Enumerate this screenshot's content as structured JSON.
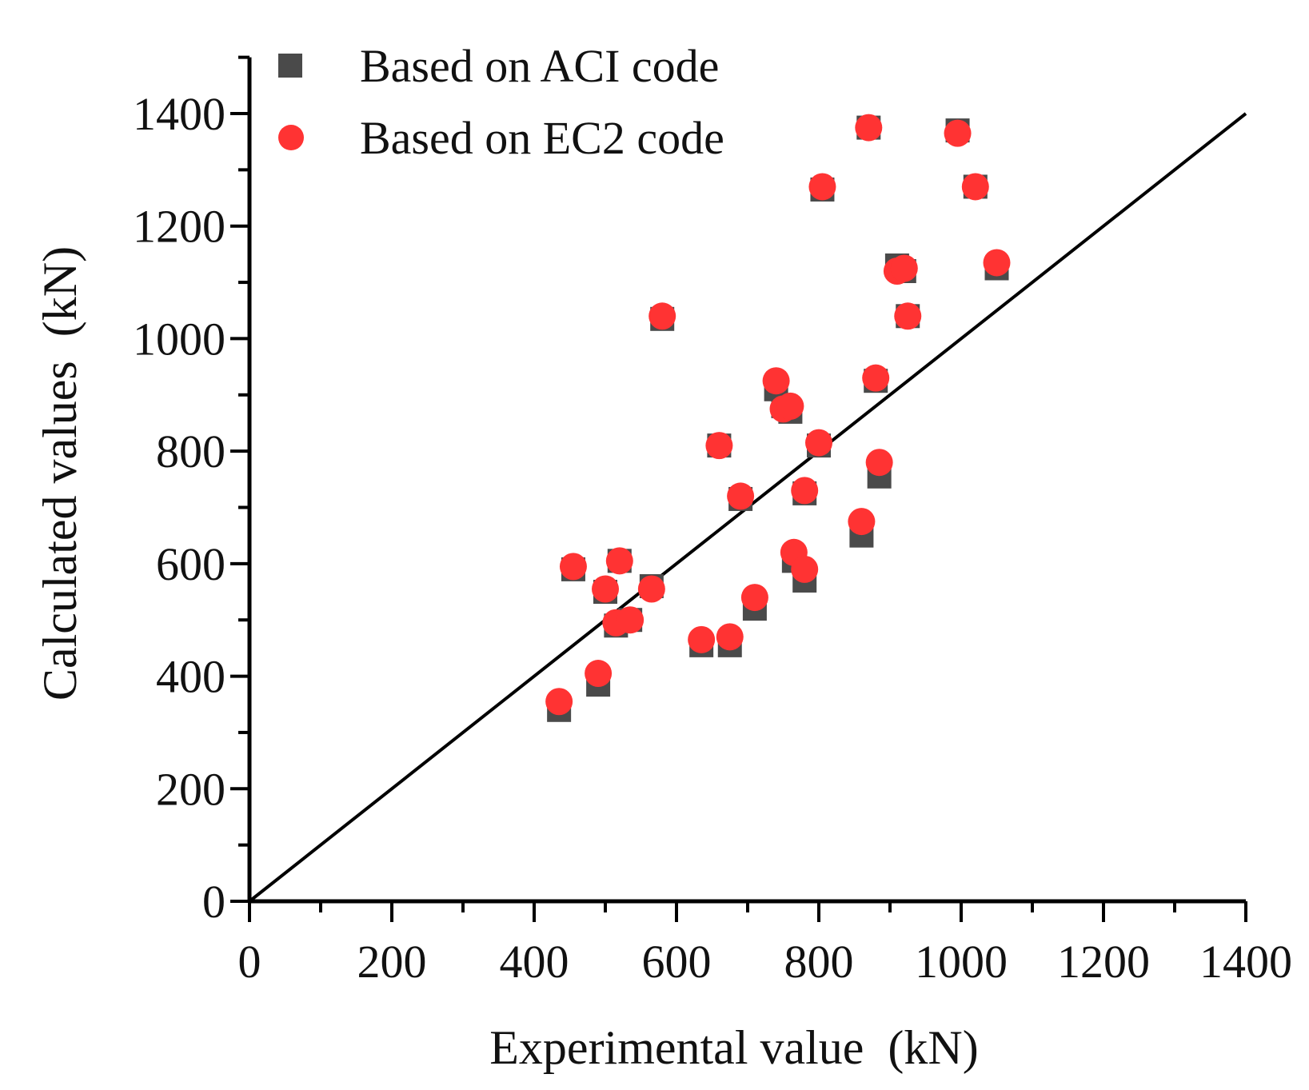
{
  "chart_data": {
    "type": "scatter",
    "title": "",
    "xlabel": "Experimental value  (kN)",
    "ylabel": "Calculated values  (kN)",
    "xlim": [
      0,
      1400
    ],
    "ylim": [
      0,
      1500
    ],
    "xticks": [
      0,
      200,
      400,
      600,
      800,
      1000,
      1200,
      1400
    ],
    "yticks": [
      0,
      200,
      400,
      600,
      800,
      1000,
      1200,
      1400
    ],
    "grid": false,
    "legend_position": "top-left",
    "reference_line": {
      "name": "y = x",
      "from": [
        0,
        0
      ],
      "to": [
        1400,
        1400
      ]
    },
    "series": [
      {
        "name": "Based on ACI code",
        "marker": "square",
        "color": "#4a4a4a",
        "points": [
          [
            435,
            340
          ],
          [
            455,
            590
          ],
          [
            490,
            385
          ],
          [
            500,
            550
          ],
          [
            515,
            490
          ],
          [
            520,
            605
          ],
          [
            535,
            500
          ],
          [
            565,
            560
          ],
          [
            580,
            1035
          ],
          [
            635,
            455
          ],
          [
            660,
            810
          ],
          [
            675,
            455
          ],
          [
            690,
            715
          ],
          [
            710,
            520
          ],
          [
            740,
            910
          ],
          [
            750,
            880
          ],
          [
            760,
            870
          ],
          [
            765,
            605
          ],
          [
            780,
            570
          ],
          [
            780,
            725
          ],
          [
            800,
            810
          ],
          [
            805,
            1265
          ],
          [
            860,
            650
          ],
          [
            870,
            1375
          ],
          [
            880,
            925
          ],
          [
            885,
            755
          ],
          [
            910,
            1130
          ],
          [
            920,
            1120
          ],
          [
            925,
            1040
          ],
          [
            995,
            1370
          ],
          [
            1020,
            1270
          ],
          [
            1050,
            1125
          ]
        ]
      },
      {
        "name": "Based on EC2 code",
        "marker": "circle",
        "color": "#ff3333",
        "points": [
          [
            435,
            355
          ],
          [
            455,
            595
          ],
          [
            490,
            405
          ],
          [
            500,
            555
          ],
          [
            515,
            495
          ],
          [
            520,
            605
          ],
          [
            535,
            500
          ],
          [
            565,
            555
          ],
          [
            580,
            1040
          ],
          [
            635,
            465
          ],
          [
            660,
            810
          ],
          [
            675,
            470
          ],
          [
            690,
            720
          ],
          [
            710,
            540
          ],
          [
            740,
            925
          ],
          [
            750,
            875
          ],
          [
            760,
            880
          ],
          [
            765,
            620
          ],
          [
            780,
            590
          ],
          [
            780,
            730
          ],
          [
            800,
            815
          ],
          [
            805,
            1270
          ],
          [
            860,
            675
          ],
          [
            870,
            1375
          ],
          [
            880,
            930
          ],
          [
            885,
            780
          ],
          [
            910,
            1120
          ],
          [
            920,
            1125
          ],
          [
            925,
            1040
          ],
          [
            995,
            1365
          ],
          [
            1020,
            1270
          ],
          [
            1050,
            1135
          ]
        ]
      }
    ]
  }
}
